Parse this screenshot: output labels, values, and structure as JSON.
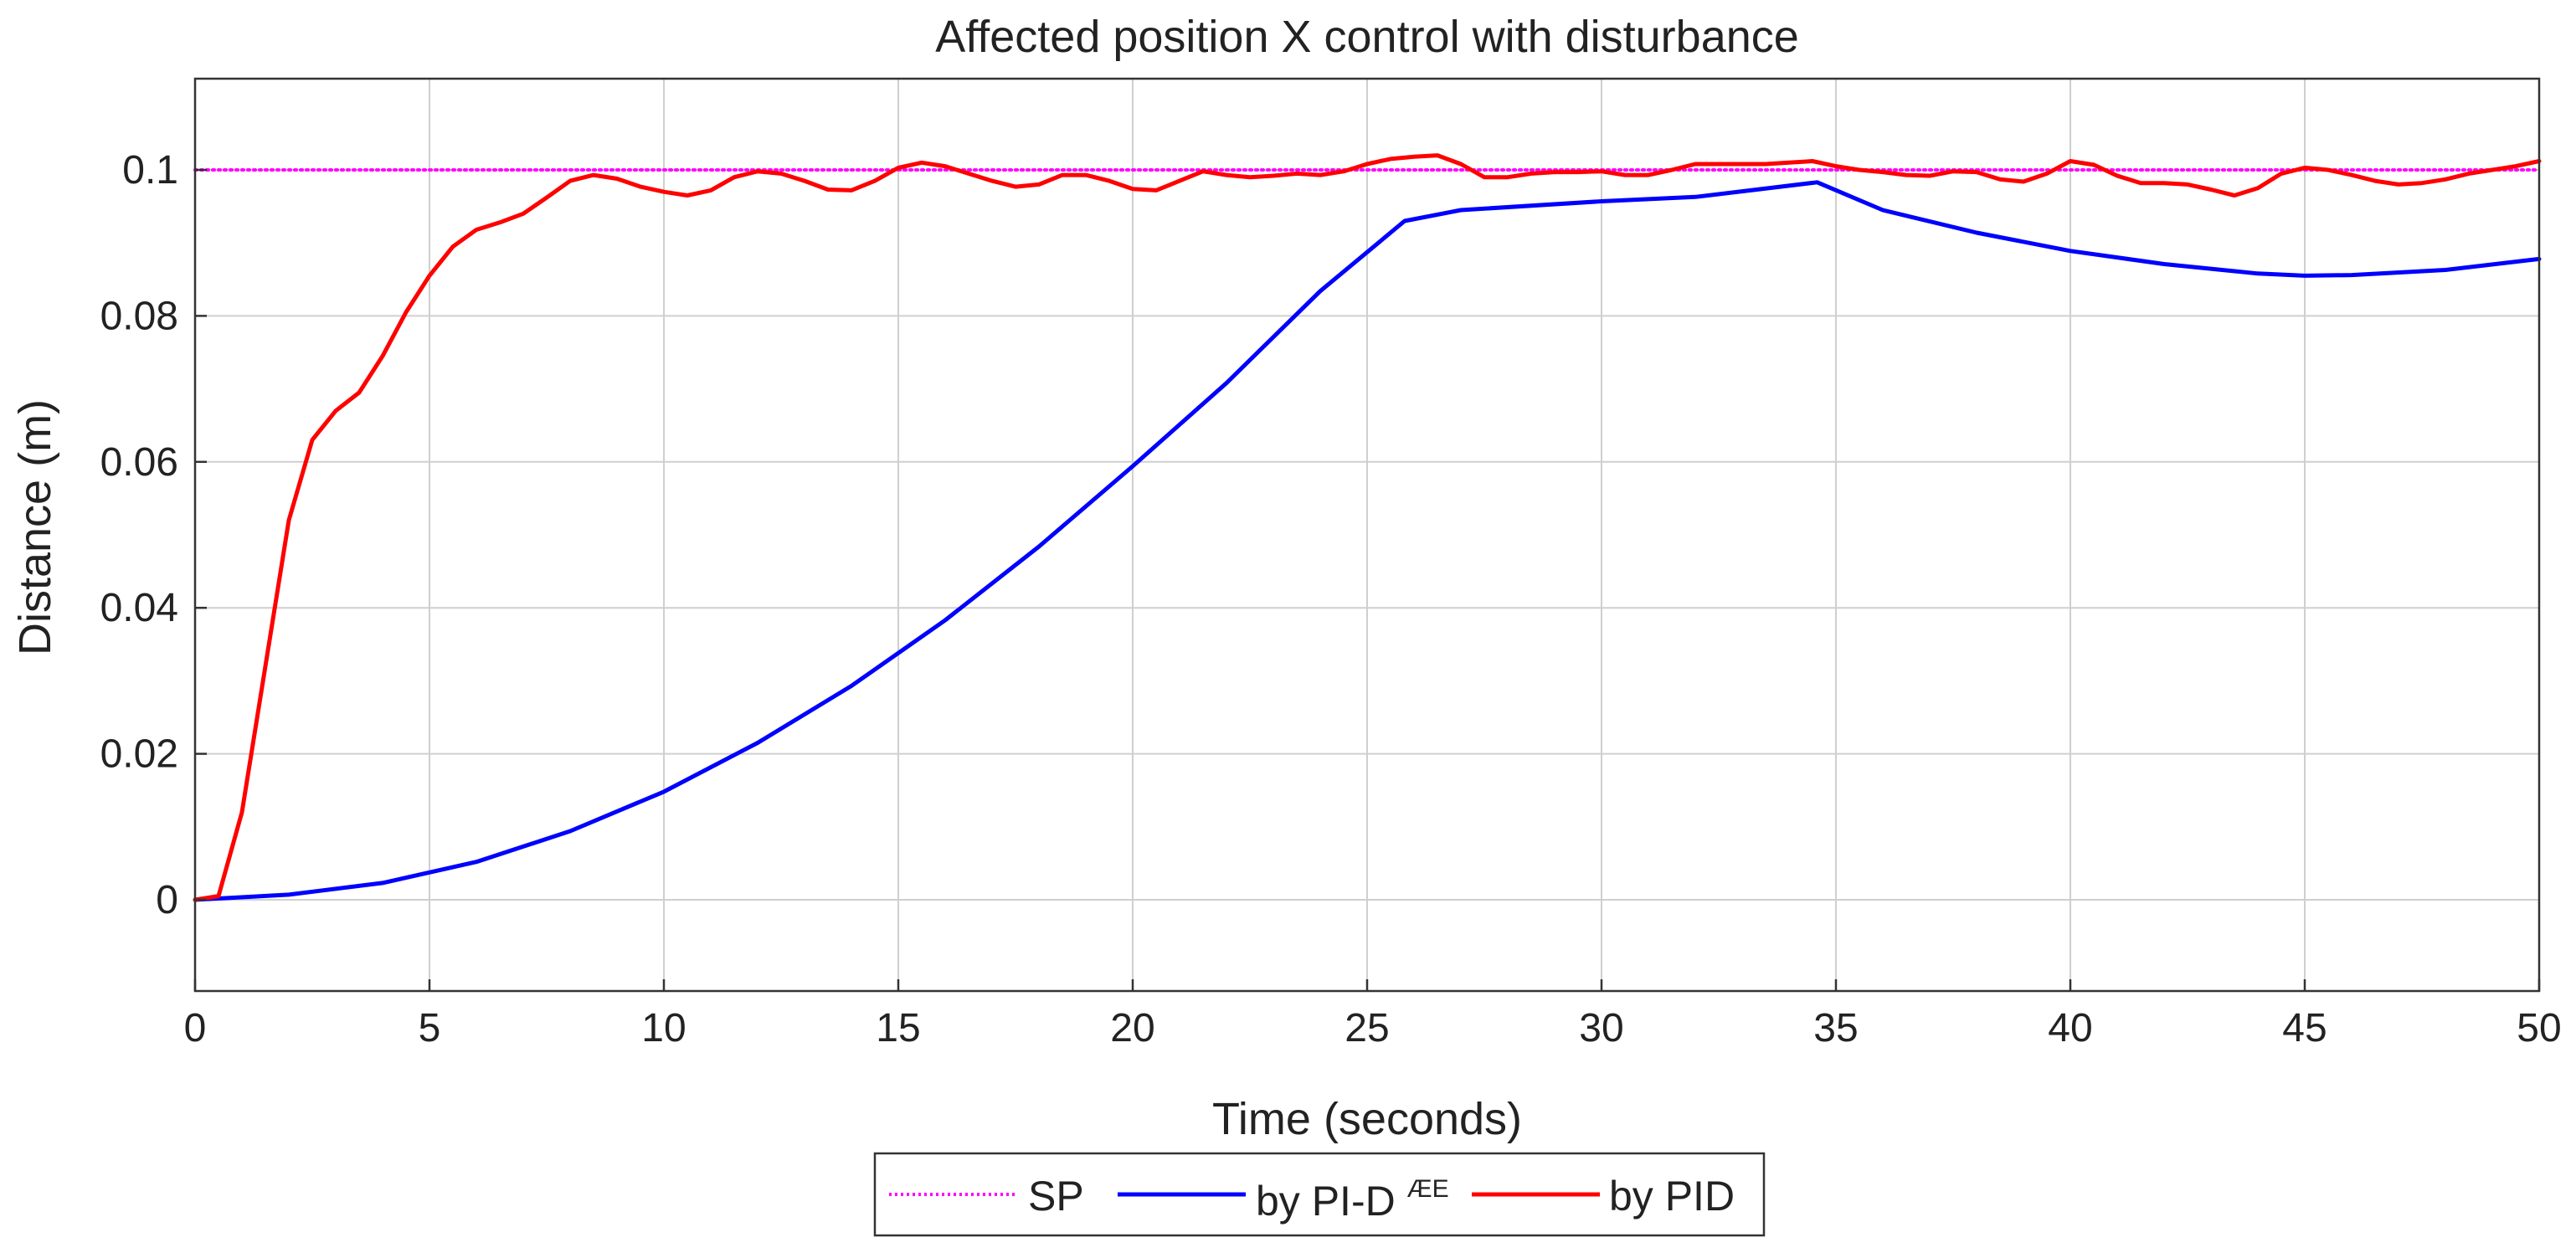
{
  "chart_data": {
    "type": "line",
    "title": "Affected position X control with disturbance",
    "xlabel": "Time (seconds)",
    "ylabel": "Distance (m)",
    "xlim": [
      0,
      50
    ],
    "ylim": [
      -0.0125,
      0.1125
    ],
    "xticks": [
      0,
      5,
      10,
      15,
      20,
      25,
      30,
      35,
      40,
      45,
      50
    ],
    "yticks": [
      0,
      0.02,
      0.04,
      0.06,
      0.08,
      0.1
    ],
    "xtick_labels": [
      "0",
      "5",
      "10",
      "15",
      "20",
      "25",
      "30",
      "35",
      "40",
      "45",
      "50"
    ],
    "ytick_labels": [
      "0",
      "0.02",
      "0.04",
      "0.06",
      "0.08",
      "0.1"
    ],
    "grid": true,
    "legend_position": "bottom-outside",
    "legend": {
      "sp_label": "SP",
      "pid_ae_label_base": "by PI-D",
      "pid_ae_label_sup": "ÆE",
      "pid_label": "by PID"
    },
    "series": [
      {
        "name": "SP",
        "color": "#ff00ff",
        "style": "dotted",
        "x": [
          0,
          50
        ],
        "y": [
          0.1,
          0.1
        ]
      },
      {
        "name": "by PI-DÆE",
        "color": "#0000ff",
        "style": "solid",
        "x": [
          0,
          2,
          4,
          6,
          8,
          10,
          12,
          14,
          16,
          18,
          20,
          22,
          24,
          25.8,
          27,
          30,
          32,
          34.6,
          36,
          38,
          40,
          42,
          44,
          45,
          46,
          48,
          50
        ],
        "y": [
          0,
          0.0007,
          0.0023,
          0.0052,
          0.0094,
          0.0148,
          0.0215,
          0.0293,
          0.0383,
          0.0484,
          0.0594,
          0.0708,
          0.0834,
          0.093,
          0.0945,
          0.0957,
          0.0963,
          0.0983,
          0.0945,
          0.0914,
          0.0889,
          0.0871,
          0.0858,
          0.0855,
          0.0856,
          0.0863,
          0.0878
        ]
      },
      {
        "name": "by PID",
        "color": "#ff0000",
        "style": "solid",
        "x": [
          0,
          0.5,
          1.0,
          1.5,
          2.0,
          2.5,
          3.0,
          3.5,
          4.0,
          4.5,
          5.0,
          5.5,
          6.0,
          6.5,
          7.0,
          7.5,
          8.0,
          8.5,
          9.0,
          9.5,
          10.0,
          10.5,
          11.0,
          11.5,
          12.0,
          12.5,
          13.0,
          13.5,
          14.0,
          14.5,
          15.0,
          15.5,
          16.0,
          16.5,
          17.0,
          17.5,
          18.0,
          18.5,
          19.0,
          19.5,
          20.0,
          20.5,
          21.0,
          21.5,
          22.0,
          22.5,
          23.0,
          23.5,
          24.0,
          24.5,
          25.0,
          25.5,
          26.0,
          26.5,
          27.0,
          27.5,
          28.0,
          28.5,
          29.0,
          29.5,
          30.0,
          30.5,
          31.0,
          31.5,
          32.0,
          32.5,
          33.0,
          33.5,
          34.0,
          34.5,
          35.0,
          35.5,
          36.0,
          36.5,
          37.0,
          37.5,
          38.0,
          38.5,
          39.0,
          39.5,
          40.0,
          40.5,
          41.0,
          41.5,
          42.0,
          42.5,
          43.0,
          43.5,
          44.0,
          44.5,
          45.0,
          45.5,
          46.0,
          46.5,
          47.0,
          47.5,
          48.0,
          48.5,
          49.0,
          49.5,
          50.0
        ],
        "y": [
          0,
          0.0005,
          0.012,
          0.032,
          0.052,
          0.063,
          0.067,
          0.0695,
          0.0745,
          0.0805,
          0.0855,
          0.0895,
          0.0918,
          0.0928,
          0.094,
          0.0962,
          0.0985,
          0.0993,
          0.0988,
          0.0977,
          0.097,
          0.0965,
          0.0972,
          0.099,
          0.0998,
          0.0995,
          0.0985,
          0.0973,
          0.0972,
          0.0985,
          0.1003,
          0.101,
          0.1005,
          0.0995,
          0.0985,
          0.0977,
          0.098,
          0.0993,
          0.0993,
          0.0985,
          0.0974,
          0.0972,
          0.0985,
          0.0998,
          0.0993,
          0.099,
          0.0992,
          0.0995,
          0.0993,
          0.0998,
          0.1008,
          0.1015,
          0.1018,
          0.102,
          0.1008,
          0.099,
          0.099,
          0.0995,
          0.0997,
          0.0997,
          0.0998,
          0.0993,
          0.0993,
          0.1,
          0.1008,
          0.1008,
          0.1008,
          0.1008,
          0.101,
          0.1012,
          0.1005,
          0.1,
          0.0997,
          0.0993,
          0.0992,
          0.0998,
          0.0997,
          0.0987,
          0.0984,
          0.0995,
          0.1012,
          0.1007,
          0.0992,
          0.0982,
          0.0982,
          0.098,
          0.0973,
          0.0965,
          0.0975,
          0.0995,
          0.1003,
          0.1,
          0.0993,
          0.0985,
          0.098,
          0.0982,
          0.0987,
          0.0995,
          0.1,
          0.1005,
          0.1012
        ]
      }
    ]
  }
}
